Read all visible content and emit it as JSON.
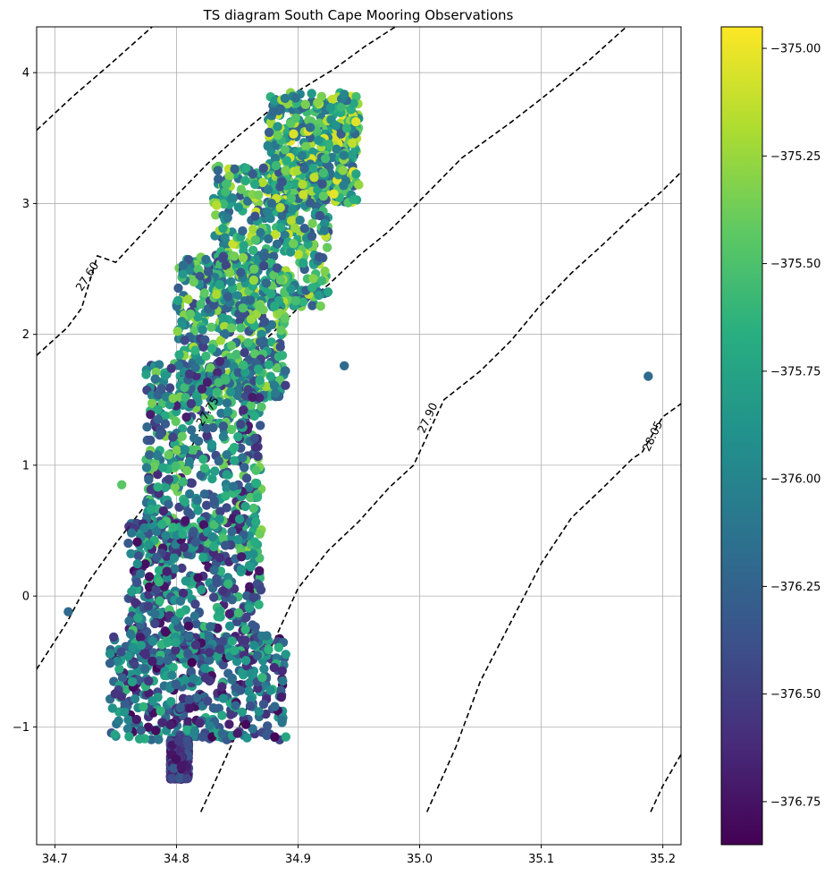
{
  "chart_data": {
    "type": "scatter",
    "title": "TS diagram South Cape Mooring Observations",
    "xlabel": "",
    "ylabel": "",
    "xlim": [
      34.685,
      35.215
    ],
    "ylim": [
      -1.9,
      4.35
    ],
    "x_ticks": [
      34.7,
      34.8,
      34.9,
      35.0,
      35.1,
      35.2
    ],
    "x_tick_labels": [
      "34.7",
      "34.8",
      "34.9",
      "35.0",
      "35.1",
      "35.2"
    ],
    "y_ticks": [
      -1,
      0,
      1,
      2,
      3,
      4
    ],
    "y_tick_labels": [
      "−1",
      "0",
      "1",
      "2",
      "3",
      "4"
    ],
    "grid": true,
    "colorbar": {
      "colormap": "viridis",
      "range": [
        -376.85,
        -374.95
      ],
      "ticks": [
        -375.0,
        -375.25,
        -375.5,
        -375.75,
        -376.0,
        -376.25,
        -376.5,
        -376.75
      ],
      "tick_labels": [
        "−375.00",
        "−375.25",
        "−375.50",
        "−375.75",
        "−376.00",
        "−376.25",
        "−376.50",
        "−376.75"
      ],
      "position": "right"
    },
    "contours": {
      "style": "dashed",
      "color": "#000000",
      "lines": [
        {
          "label": "27.60",
          "label_at": [
            34.727,
            2.44
          ],
          "label_rotation": -57,
          "points": [
            [
              34.685,
              1.84
            ],
            [
              34.71,
              2.05
            ],
            [
              34.722,
              2.2
            ],
            [
              34.735,
              2.6
            ],
            [
              34.75,
              2.55
            ],
            [
              34.775,
              2.8
            ],
            [
              34.8,
              3.06
            ],
            [
              34.825,
              3.3
            ],
            [
              34.85,
              3.51
            ],
            [
              34.875,
              3.7
            ],
            [
              34.9,
              3.86
            ],
            [
              34.93,
              4.03
            ],
            [
              34.955,
              4.2
            ],
            [
              34.98,
              4.35
            ]
          ]
        },
        {
          "label": "",
          "points": [
            [
              34.685,
              3.56
            ],
            [
              34.715,
              3.82
            ],
            [
              34.745,
              4.06
            ],
            [
              34.78,
              4.35
            ]
          ]
        },
        {
          "label": "27.75",
          "label_at": [
            34.826,
            1.41
          ],
          "label_rotation": -58,
          "points": [
            [
              34.685,
              -0.56
            ],
            [
              34.71,
              -0.2
            ],
            [
              34.727,
              0.1
            ],
            [
              34.75,
              0.4
            ],
            [
              34.775,
              0.7
            ],
            [
              34.8,
              0.98
            ],
            [
              34.813,
              1.15
            ],
            [
              34.84,
              1.67
            ],
            [
              34.87,
              1.93
            ],
            [
              34.9,
              2.2
            ],
            [
              34.925,
              2.38
            ],
            [
              34.95,
              2.6
            ],
            [
              34.975,
              2.79
            ],
            [
              35.0,
              3.02
            ],
            [
              35.035,
              3.35
            ],
            [
              35.075,
              3.62
            ],
            [
              35.1,
              3.8
            ],
            [
              35.14,
              4.1
            ],
            [
              35.17,
              4.35
            ]
          ]
        },
        {
          "label": "27.90",
          "label_at": [
            35.007,
            1.36
          ],
          "label_rotation": -65,
          "points": [
            [
              34.82,
              -1.65
            ],
            [
              34.835,
              -1.35
            ],
            [
              34.85,
              -1.04
            ],
            [
              34.875,
              -0.45
            ],
            [
              34.9,
              0.06
            ],
            [
              34.925,
              0.35
            ],
            [
              34.95,
              0.57
            ],
            [
              34.975,
              0.83
            ],
            [
              34.995,
              1.0
            ],
            [
              35.02,
              1.5
            ],
            [
              35.05,
              1.72
            ],
            [
              35.075,
              1.95
            ],
            [
              35.1,
              2.23
            ],
            [
              35.125,
              2.47
            ],
            [
              35.15,
              2.68
            ],
            [
              35.175,
              2.9
            ],
            [
              35.2,
              3.1
            ],
            [
              35.215,
              3.24
            ]
          ]
        },
        {
          "label": "28.05",
          "label_at": [
            35.192,
            1.22
          ],
          "label_rotation": -65,
          "points": [
            [
              35.006,
              -1.65
            ],
            [
              35.03,
              -1.15
            ],
            [
              35.05,
              -0.65
            ],
            [
              35.075,
              -0.2
            ],
            [
              35.1,
              0.25
            ],
            [
              35.125,
              0.6
            ],
            [
              35.15,
              0.82
            ],
            [
              35.175,
              1.05
            ],
            [
              35.183,
              1.1
            ],
            [
              35.2,
              1.37
            ],
            [
              35.215,
              1.47
            ]
          ]
        },
        {
          "label": "",
          "points": [
            [
              35.19,
              -1.65
            ],
            [
              35.2,
              -1.45
            ],
            [
              35.215,
              -1.21
            ]
          ]
        }
      ]
    },
    "series": [
      {
        "marker": "circle",
        "point_count": 3200,
        "regions": [
          {
            "x_range": [
              34.875,
              34.95
            ],
            "y_range": [
              3.0,
              3.85
            ],
            "value_range": [
              -376.3,
              -375.0
            ]
          },
          {
            "x_range": [
              34.83,
              34.925
            ],
            "y_range": [
              2.2,
              3.3
            ],
            "value_range": [
              -376.4,
              -375.1
            ]
          },
          {
            "x_range": [
              34.8,
              34.89
            ],
            "y_range": [
              1.5,
              2.6
            ],
            "value_range": [
              -376.5,
              -375.2
            ]
          },
          {
            "x_range": [
              34.775,
              34.87
            ],
            "y_range": [
              0.3,
              1.8
            ],
            "value_range": [
              -376.7,
              -375.3
            ]
          },
          {
            "x_range": [
              34.76,
              34.87
            ],
            "y_range": [
              -0.5,
              0.6
            ],
            "value_range": [
              -376.8,
              -375.5
            ]
          },
          {
            "x_range": [
              34.745,
              34.89
            ],
            "y_range": [
              -1.1,
              -0.3
            ],
            "value_range": [
              -376.85,
              -375.6
            ]
          },
          {
            "x_range": [
              34.795,
              34.81
            ],
            "y_range": [
              -1.4,
              -1.1
            ],
            "value_range": [
              -376.8,
              -376.3
            ]
          }
        ],
        "outliers": [
          {
            "x": 34.711,
            "y": -0.12,
            "value": -376.2
          },
          {
            "x": 34.938,
            "y": 1.76,
            "value": -376.2
          },
          {
            "x": 35.188,
            "y": 1.68,
            "value": -376.2
          },
          {
            "x": 34.755,
            "y": 0.85,
            "value": -375.45
          },
          {
            "x": 34.785,
            "y": 1.35,
            "value": -376.25
          }
        ]
      }
    ]
  }
}
